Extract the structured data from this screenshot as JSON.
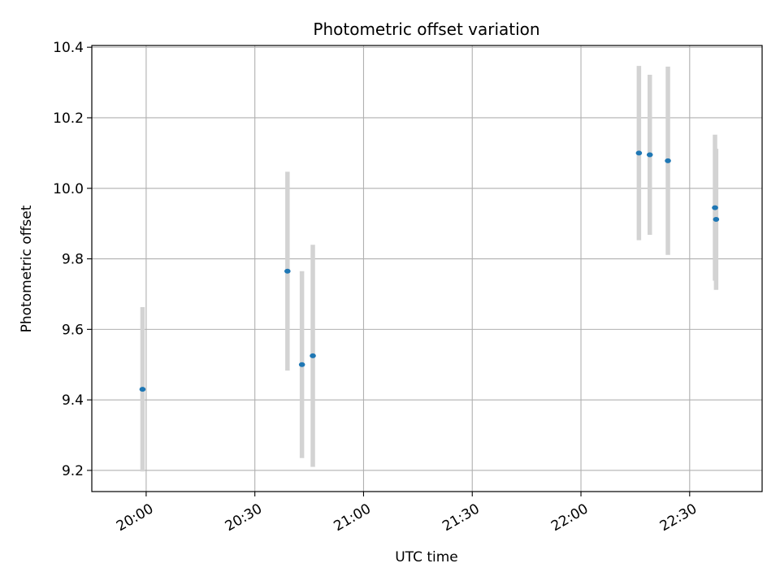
{
  "chart_data": {
    "type": "scatter",
    "title": "Photometric offset variation",
    "xlabel": "UTC time",
    "ylabel": "Photometric offset",
    "xlim": [
      "19:45",
      "22:50"
    ],
    "ylim": [
      9.14,
      10.405
    ],
    "xticks": [
      "20:00",
      "20:30",
      "21:00",
      "21:30",
      "22:00",
      "22:30"
    ],
    "yticks": [
      9.2,
      9.4,
      9.6,
      9.8,
      10.0,
      10.2,
      10.4
    ],
    "ytick_labels": [
      "9.2",
      "9.4",
      "9.6",
      "9.8",
      "10.0",
      "10.2",
      "10.4"
    ],
    "grid": true,
    "point_color": "#1f77b4",
    "errorbar_color": "#d3d3d3",
    "points": [
      {
        "x": "19:59",
        "y": 9.43,
        "yerr": 0.233
      },
      {
        "x": "20:39",
        "y": 9.765,
        "yerr": 0.282
      },
      {
        "x": "20:43",
        "y": 9.5,
        "yerr": 0.265
      },
      {
        "x": "20:46",
        "y": 9.525,
        "yerr": 0.315
      },
      {
        "x": "22:16",
        "y": 10.1,
        "yerr": 0.247
      },
      {
        "x": "22:19",
        "y": 10.095,
        "yerr": 0.227
      },
      {
        "x": "22:24",
        "y": 10.078,
        "yerr": 0.267
      },
      {
        "x": "22:37",
        "y": 9.945,
        "yerr": 0.207
      },
      {
        "x": "22:37.3",
        "y": 9.912,
        "yerr": 0.2
      }
    ]
  }
}
